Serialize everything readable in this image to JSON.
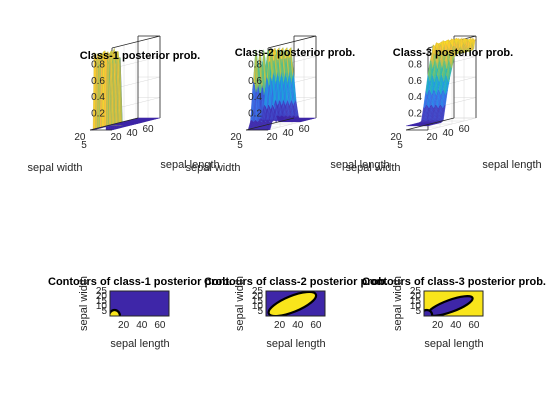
{
  "figure": {
    "background": "#ffffff",
    "colormap": [
      "#3e26a8",
      "#4254d5",
      "#2f82f3",
      "#14aed1",
      "#3cc09a",
      "#a0c34b",
      "#fcba3d",
      "#f9e51b"
    ],
    "contour_line_color": "#000000"
  },
  "chart_data": [
    {
      "type": "surface",
      "title": "Class-1 posterior prob.",
      "xlabel": "sepal width",
      "ylabel": "sepal length",
      "z_ticks": [
        "0.2",
        "0.4",
        "0.6",
        "0.8"
      ],
      "x_ticks": [
        "20",
        "5"
      ],
      "y_ticks": [
        "20",
        "40",
        "60"
      ],
      "zlim": [
        0,
        1
      ],
      "shape": "narrow ridge",
      "ridge_x_range": [
        0.3,
        0.85
      ],
      "ridge_y_range": [
        0.0,
        0.35
      ]
    },
    {
      "type": "surface",
      "title": "Class-2 posterior prob.",
      "xlabel": "sepal width",
      "ylabel": "sepal length",
      "z_ticks": [
        "0.2",
        "0.4",
        "0.6",
        "0.8"
      ],
      "x_ticks": [
        "20",
        "5"
      ],
      "y_ticks": [
        "20",
        "40",
        "60"
      ],
      "zlim": [
        0,
        1
      ],
      "shape": "double ridge",
      "ridge_x_range": [
        0.0,
        1.0
      ],
      "ridge_y_range": [
        0.05,
        0.65
      ]
    },
    {
      "type": "surface",
      "title": "Class-3 posterior prob.",
      "xlabel": "sepal width",
      "ylabel": "sepal length",
      "z_ticks": [
        "0.2",
        "0.4",
        "0.6",
        "0.8"
      ],
      "x_ticks": [
        "20",
        "5"
      ],
      "y_ticks": [
        "20",
        "40",
        "60"
      ],
      "zlim": [
        0,
        1
      ],
      "shape": "plateau",
      "ridge_x_range": [
        0.0,
        1.0
      ],
      "ridge_y_range": [
        0.3,
        1.0
      ]
    },
    {
      "type": "contour",
      "title": "Contours of class-1 posterior prob.",
      "xlabel": "sepal length",
      "ylabel": "sepal width",
      "x_ticks": [
        "20",
        "40",
        "60"
      ],
      "y_ticks": [
        "5",
        "10",
        "15",
        "20",
        "25"
      ],
      "xlim": [
        5,
        70
      ],
      "ylim": [
        0,
        25
      ],
      "background_color": "#3e26a8",
      "region_color": "#f9e51b",
      "regions": [
        {
          "cx": 10,
          "cy": 0,
          "rx": 6,
          "ry": 6,
          "rotate": 0
        }
      ]
    },
    {
      "type": "contour",
      "title": "Contours of class-2 posterior prob.",
      "xlabel": "sepal length",
      "ylabel": "sepal width",
      "x_ticks": [
        "20",
        "40",
        "60"
      ],
      "y_ticks": [
        "5",
        "10",
        "15",
        "20",
        "25"
      ],
      "xlim": [
        5,
        70
      ],
      "ylim": [
        0,
        25
      ],
      "background_color": "#3e26a8",
      "region_color": "#f9e51b",
      "regions": [
        {
          "cx": 34,
          "cy": 12,
          "rx": 28,
          "ry": 8,
          "rotate": -22
        }
      ]
    },
    {
      "type": "contour",
      "title": "Contours of class-3 posterior prob.",
      "xlabel": "sepal length",
      "ylabel": "sepal width",
      "x_ticks": [
        "20",
        "40",
        "60"
      ],
      "y_ticks": [
        "5",
        "10",
        "15",
        "20",
        "25"
      ],
      "xlim": [
        5,
        70
      ],
      "ylim": [
        0,
        25
      ],
      "background_color": "#f9e51b",
      "region_color": "#3e26a8",
      "regions": [
        {
          "cx": 34,
          "cy": 10,
          "rx": 26,
          "ry": 6,
          "rotate": -20
        },
        {
          "cx": 8,
          "cy": 1,
          "rx": 6,
          "ry": 5,
          "rotate": 0
        }
      ]
    }
  ]
}
